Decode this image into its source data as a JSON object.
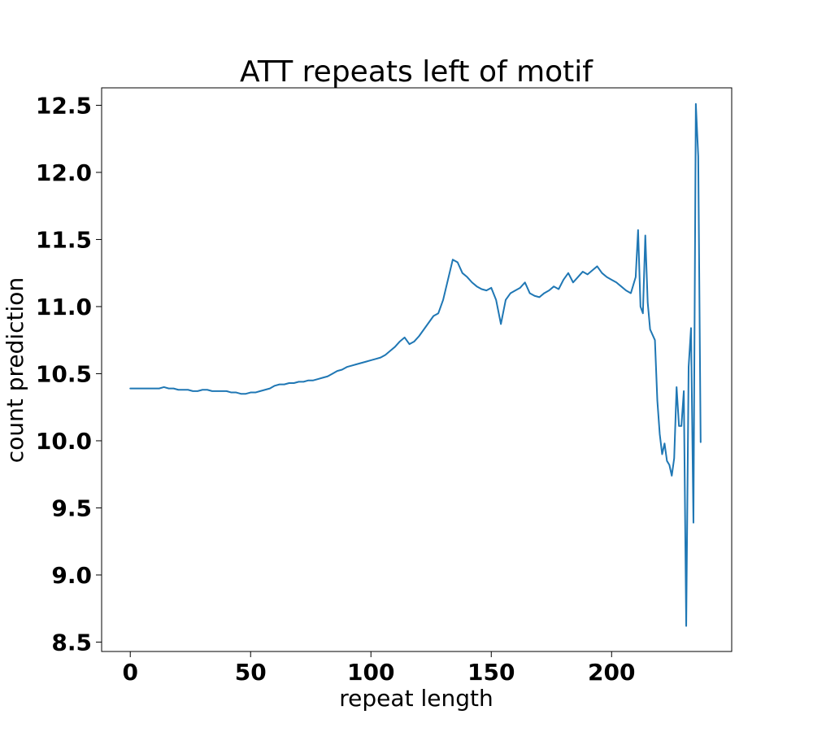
{
  "chart_data": {
    "type": "line",
    "title": "ATT repeats left of motif",
    "xlabel": "repeat length",
    "ylabel": "count prediction",
    "xlim": [
      -11.9,
      249.9
    ],
    "ylim": [
      8.43,
      12.63
    ],
    "xticks": [
      0,
      50,
      100,
      150,
      200
    ],
    "xtick_labels": [
      "0",
      "50",
      "100",
      "150",
      "200"
    ],
    "yticks": [
      8.5,
      9.0,
      9.5,
      10.0,
      10.5,
      11.0,
      11.5,
      12.0,
      12.5
    ],
    "ytick_labels": [
      "8.5",
      "9.0",
      "9.5",
      "10.0",
      "10.5",
      "11.0",
      "11.5",
      "12.0",
      "12.5"
    ],
    "grid": false,
    "line_color": "#1f77b4",
    "series": [
      {
        "x": [
          0,
          2,
          4,
          6,
          8,
          10,
          12,
          14,
          16,
          18,
          20,
          22,
          24,
          26,
          28,
          30,
          32,
          34,
          36,
          38,
          40,
          42,
          44,
          46,
          48,
          50,
          52,
          54,
          56,
          58,
          60,
          62,
          64,
          66,
          68,
          70,
          72,
          74,
          76,
          78,
          80,
          82,
          84,
          86,
          88,
          90,
          92,
          94,
          96,
          98,
          100,
          102,
          104,
          106,
          108,
          110,
          112,
          114,
          116,
          118,
          120,
          122,
          124,
          126,
          128,
          130,
          132,
          134,
          136,
          138,
          140,
          142,
          144,
          146,
          148,
          150,
          152,
          154,
          156,
          158,
          160,
          162,
          164,
          166,
          168,
          170,
          172,
          174,
          176,
          178,
          180,
          182,
          184,
          186,
          188,
          190,
          192,
          194,
          196,
          198,
          200,
          202,
          204,
          206,
          208,
          210,
          211,
          212,
          213,
          214,
          215,
          216,
          218,
          219,
          220,
          221,
          222,
          223,
          224,
          225,
          226,
          227,
          228,
          229,
          230,
          231,
          232,
          233,
          234,
          235,
          236,
          237
        ],
        "y": [
          10.39,
          10.39,
          10.39,
          10.39,
          10.39,
          10.39,
          10.39,
          10.4,
          10.39,
          10.39,
          10.38,
          10.38,
          10.38,
          10.37,
          10.37,
          10.38,
          10.38,
          10.37,
          10.37,
          10.37,
          10.37,
          10.36,
          10.36,
          10.35,
          10.35,
          10.36,
          10.36,
          10.37,
          10.38,
          10.39,
          10.41,
          10.42,
          10.42,
          10.43,
          10.43,
          10.44,
          10.44,
          10.45,
          10.45,
          10.46,
          10.47,
          10.48,
          10.5,
          10.52,
          10.53,
          10.55,
          10.56,
          10.57,
          10.58,
          10.59,
          10.6,
          10.61,
          10.62,
          10.64,
          10.67,
          10.7,
          10.74,
          10.77,
          10.72,
          10.74,
          10.78,
          10.83,
          10.88,
          10.93,
          10.95,
          11.05,
          11.2,
          11.35,
          11.33,
          11.25,
          11.22,
          11.18,
          11.15,
          11.13,
          11.12,
          11.14,
          11.05,
          10.87,
          11.05,
          11.1,
          11.12,
          11.14,
          11.18,
          11.1,
          11.08,
          11.07,
          11.1,
          11.12,
          11.15,
          11.13,
          11.2,
          11.25,
          11.18,
          11.22,
          11.26,
          11.24,
          11.27,
          11.3,
          11.25,
          11.22,
          11.2,
          11.18,
          11.15,
          11.12,
          11.1,
          11.22,
          11.57,
          11.0,
          10.95,
          11.53,
          11.03,
          10.83,
          10.75,
          10.3,
          10.05,
          9.9,
          9.98,
          9.85,
          9.82,
          9.74,
          9.87,
          10.4,
          10.11,
          10.11,
          10.37,
          8.62,
          10.55,
          10.84,
          9.39,
          12.51,
          12.12,
          9.99
        ]
      }
    ]
  }
}
